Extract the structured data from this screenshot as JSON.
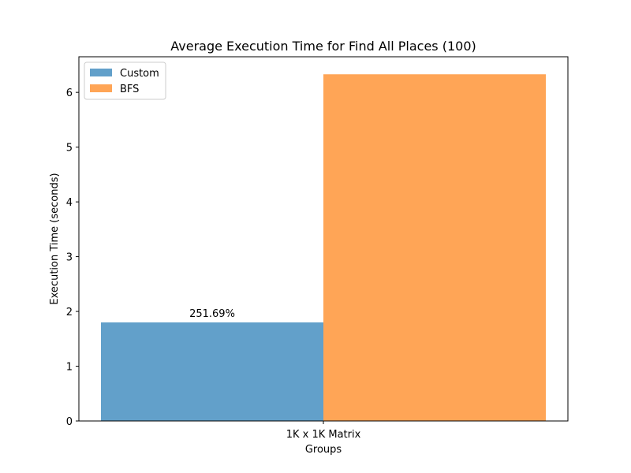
{
  "chart_data": {
    "type": "bar",
    "title": "Average Execution Time for Find All Places (100)",
    "xlabel": "Groups",
    "ylabel": "Execution Time (seconds)",
    "categories": [
      "1K x 1K Matrix"
    ],
    "series": [
      {
        "name": "Custom",
        "values": [
          1.8
        ],
        "color": "#1f77b4"
      },
      {
        "name": "BFS",
        "values": [
          6.33
        ],
        "color": "#ff7f0e"
      }
    ],
    "ylim": [
      0,
      6.65
    ],
    "yticks": [
      0,
      1,
      2,
      3,
      4,
      5,
      6
    ],
    "data_labels": [
      {
        "series": "Custom",
        "category": "1K x 1K Matrix",
        "text": "251.69%"
      }
    ],
    "bar_opacity": 0.7,
    "legend_position": "top-left",
    "grid": false
  }
}
